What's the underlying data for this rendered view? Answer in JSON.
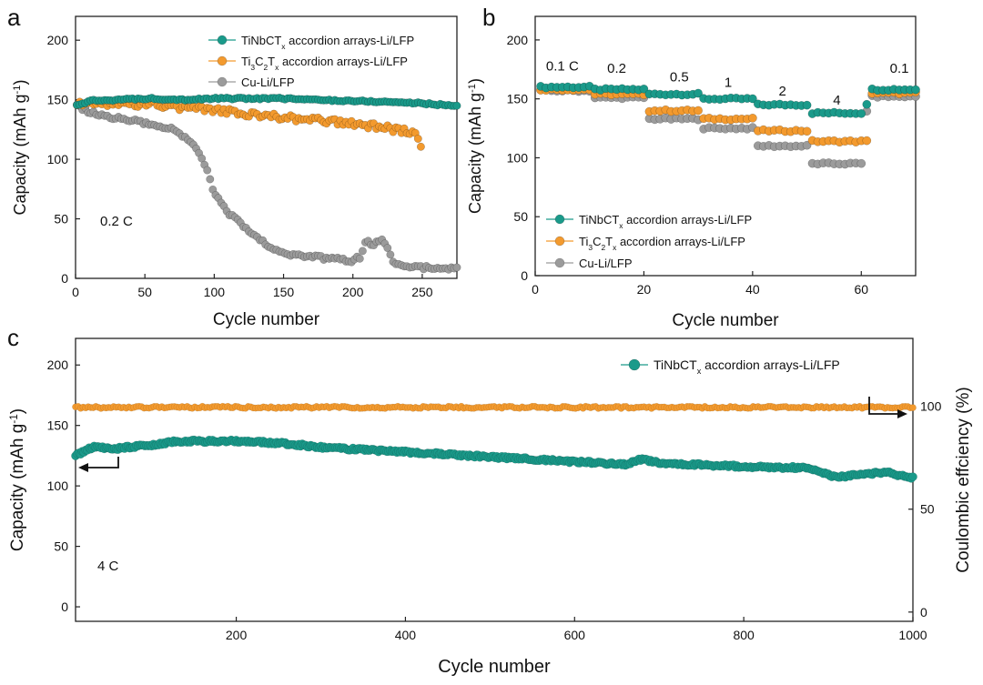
{
  "colors": {
    "teal": "#1a9a8a",
    "orange": "#f39a2e",
    "gray": "#9b9b9b"
  },
  "chart_data": [
    {
      "id": "a",
      "type": "scatter",
      "panel_label": "a",
      "xlabel": "Cycle number",
      "ylabel": "Capacity (mAh g",
      "ylabel_sup": "-1",
      "ylabel_tail": ")",
      "xlim": [
        0,
        275
      ],
      "ylim": [
        0,
        220
      ],
      "xticks": [
        0,
        50,
        100,
        150,
        200,
        250
      ],
      "yticks": [
        0,
        50,
        100,
        150,
        200
      ],
      "annotation": "0.2 C",
      "legend": {
        "position": "top-right",
        "entries": [
          {
            "base": "TiNbCT",
            "sub": "x",
            "tail": " accordion arrays-Li/LFP",
            "color": "teal"
          },
          {
            "base": "Ti",
            "sub1": "3",
            "mid": "C",
            "sub2": "2",
            "mid2": "T",
            "sub3": "x",
            "tail": " accordion arrays-Li/LFP",
            "color": "orange"
          },
          {
            "base": "Cu-Li/LFP",
            "color": "gray"
          }
        ]
      },
      "series": [
        {
          "name": "TiNbCTx accordion arrays-Li/LFP",
          "color": "teal",
          "points": [
            [
              1,
              145
            ],
            [
              10,
              149
            ],
            [
              30,
              150
            ],
            [
              55,
              151
            ],
            [
              80,
              150
            ],
            [
              100,
              151
            ],
            [
              130,
              151
            ],
            [
              150,
              151
            ],
            [
              170,
              150
            ],
            [
              200,
              149
            ],
            [
              230,
              148
            ],
            [
              250,
              147
            ],
            [
              260,
              146
            ],
            [
              275,
              145
            ]
          ]
        },
        {
          "name": "Ti3C2Tx accordion arrays-Li/LFP",
          "color": "orange",
          "points": [
            [
              1,
              147
            ],
            [
              30,
              147
            ],
            [
              60,
              146
            ],
            [
              80,
              143
            ],
            [
              100,
              141
            ],
            [
              120,
              139
            ],
            [
              140,
              136
            ],
            [
              160,
              134
            ],
            [
              180,
              132
            ],
            [
              200,
              130
            ],
            [
              220,
              127
            ],
            [
              235,
              124
            ],
            [
              245,
              121
            ],
            [
              248,
              118
            ],
            [
              250,
              99
            ]
          ]
        },
        {
          "name": "Cu-Li/LFP",
          "color": "gray",
          "points": [
            [
              1,
              145
            ],
            [
              10,
              140
            ],
            [
              20,
              136
            ],
            [
              40,
              133
            ],
            [
              60,
              128
            ],
            [
              70,
              125
            ],
            [
              80,
              118
            ],
            [
              88,
              108
            ],
            [
              95,
              90
            ],
            [
              100,
              72
            ],
            [
              110,
              55
            ],
            [
              120,
              45
            ],
            [
              130,
              35
            ],
            [
              140,
              27
            ],
            [
              150,
              22
            ],
            [
              160,
              19
            ],
            [
              180,
              17
            ],
            [
              200,
              15
            ],
            [
              205,
              18
            ],
            [
              210,
              32
            ],
            [
              215,
              28
            ],
            [
              220,
              33
            ],
            [
              225,
              25
            ],
            [
              230,
              11
            ],
            [
              250,
              9
            ],
            [
              275,
              8
            ]
          ]
        }
      ]
    },
    {
      "id": "b",
      "type": "scatter",
      "panel_label": "b",
      "xlabel": "Cycle number",
      "ylabel": "Capacity (mAh g",
      "ylabel_sup": "-1",
      "ylabel_tail": ")",
      "xlim": [
        0,
        70
      ],
      "ylim": [
        0,
        220
      ],
      "xticks": [
        0,
        20,
        40,
        60
      ],
      "yticks": [
        0,
        50,
        100,
        150,
        200
      ],
      "rate_labels": [
        {
          "text": "0.1 C",
          "x": 5,
          "y": 174
        },
        {
          "text": "0.2",
          "x": 15,
          "y": 172
        },
        {
          "text": "0.5",
          "x": 26.5,
          "y": 165
        },
        {
          "text": "1",
          "x": 35.5,
          "y": 160
        },
        {
          "text": "2",
          "x": 45.5,
          "y": 153
        },
        {
          "text": "4",
          "x": 55.5,
          "y": 145
        },
        {
          "text": "0.1",
          "x": 67,
          "y": 172
        }
      ],
      "legend": {
        "position": "bottom-left",
        "entries": [
          {
            "base": "TiNbCT",
            "sub": "x",
            "tail": " accordion arrays-Li/LFP",
            "color": "teal"
          },
          {
            "base": "Ti",
            "sub1": "3",
            "mid": "C",
            "sub2": "2",
            "mid2": "T",
            "sub3": "x",
            "tail": " accordion arrays-Li/LFP",
            "color": "orange"
          },
          {
            "base": "Cu-Li/LFP",
            "color": "gray"
          }
        ]
      },
      "series": [
        {
          "name": "TiNbCTx accordion arrays-Li/LFP",
          "color": "teal",
          "steps": [
            [
              1,
              10,
              160
            ],
            [
              11,
              20,
              158
            ],
            [
              21,
              30,
              154
            ],
            [
              31,
              40,
              150
            ],
            [
              41,
              50,
              145
            ],
            [
              51,
              60,
              138
            ],
            [
              61,
              61,
              146
            ],
            [
              62,
              70,
              158
            ]
          ]
        },
        {
          "name": "Ti3C2Tx accordion arrays-Li/LFP",
          "color": "orange",
          "steps": [
            [
              1,
              10,
              158
            ],
            [
              11,
              20,
              154
            ],
            [
              21,
              30,
              140
            ],
            [
              31,
              40,
              133
            ],
            [
              41,
              50,
              123
            ],
            [
              51,
              60,
              114
            ],
            [
              61,
              61,
              114
            ],
            [
              62,
              70,
              155
            ]
          ]
        },
        {
          "name": "Cu-Li/LFP",
          "color": "gray",
          "steps": [
            [
              1,
              10,
              157
            ],
            [
              11,
              20,
              151
            ],
            [
              21,
              30,
              133
            ],
            [
              31,
              40,
              125
            ],
            [
              41,
              50,
              110
            ],
            [
              51,
              60,
              95
            ],
            [
              61,
              61,
              140
            ],
            [
              62,
              70,
              152
            ]
          ]
        }
      ]
    },
    {
      "id": "c",
      "type": "scatter",
      "panel_label": "c",
      "xlabel": "Cycle number",
      "ylabel": "Capacity (mAh g",
      "ylabel_sup": "-1",
      "ylabel_tail": ")",
      "y2label": "Coulombic effciency (%)",
      "xlim": [
        10,
        1000
      ],
      "ylim": [
        -12,
        222
      ],
      "y2lim": [
        -4.5,
        133
      ],
      "xticks": [
        200,
        400,
        600,
        800,
        1000
      ],
      "yticks": [
        0,
        50,
        100,
        150,
        200
      ],
      "y2ticks": [
        0,
        50,
        100
      ],
      "annotation": "4 C",
      "legend": {
        "position": "top-right",
        "entries": [
          {
            "base": "TiNbCT",
            "sub": "x",
            "tail": " accordion arrays-Li/LFP",
            "color": "teal"
          }
        ]
      },
      "series": [
        {
          "name": "TiNbCTx accordion arrays-Li/LFP (capacity)",
          "color": "teal",
          "axis": "left",
          "points": [
            [
              10,
              125
            ],
            [
              30,
              132
            ],
            [
              60,
              131
            ],
            [
              100,
              134
            ],
            [
              130,
              137
            ],
            [
              200,
              137
            ],
            [
              260,
              135
            ],
            [
              300,
              132
            ],
            [
              400,
              128
            ],
            [
              500,
              124
            ],
            [
              600,
              120
            ],
            [
              660,
              118
            ],
            [
              680,
              122
            ],
            [
              700,
              119
            ],
            [
              800,
              116
            ],
            [
              870,
              115
            ],
            [
              890,
              112
            ],
            [
              910,
              107
            ],
            [
              940,
              110
            ],
            [
              970,
              111
            ],
            [
              1000,
              107
            ]
          ]
        },
        {
          "name": "TiNbCTx accordion arrays-Li/LFP (Coulombic efficiency)",
          "color": "orange",
          "axis": "right",
          "points": [
            [
              10,
              99.5
            ],
            [
              500,
              99.5
            ],
            [
              1000,
              99.5
            ]
          ]
        }
      ]
    }
  ]
}
